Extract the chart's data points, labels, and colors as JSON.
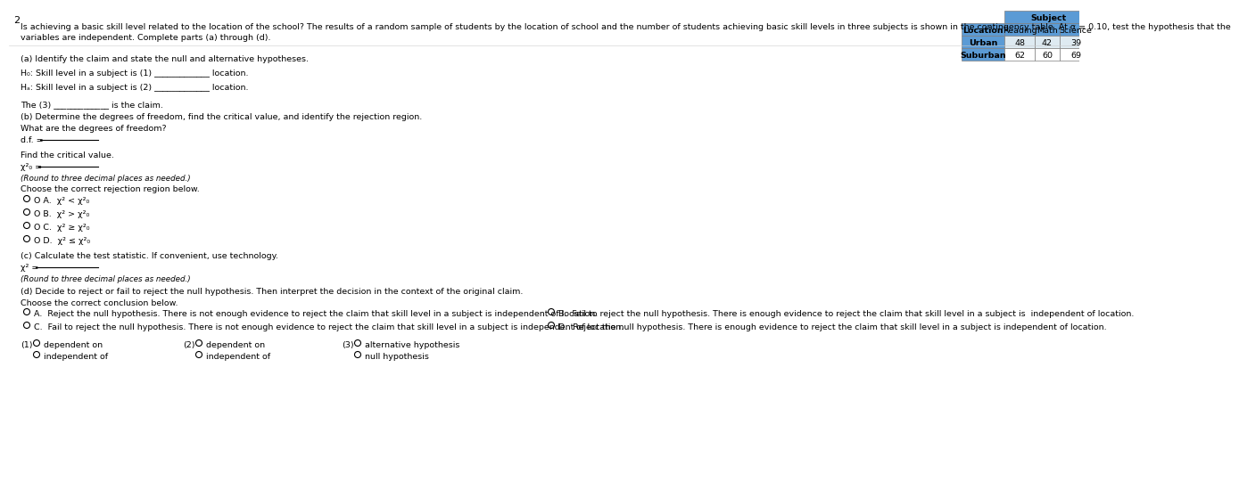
{
  "page_number": "2",
  "title_line1": "Is achieving a basic skill level related to the location of the school? The results of a random sample of students by the location of school and the number of students achieving basic skill levels in three subjects is shown in the contingency table. At α = 0.10, test the hypothesis that the",
  "title_line2": "variables are independent. Complete parts (a) through (d).",
  "table": {
    "header_top": "Subject",
    "headers": [
      "Location",
      "Reading",
      "Math",
      "Science"
    ],
    "rows": [
      [
        "Urban",
        "48",
        "42",
        "39"
      ],
      [
        "Suburban",
        "62",
        "60",
        "69"
      ]
    ],
    "header_bg": "#5B9BD5",
    "data_bg": "#DEEAF1",
    "data_bg2": "#FFFFFF",
    "border_color": "#7F7F7F"
  },
  "part_a_title": "(a) Identify the claim and state the null and alternative hypotheses.",
  "h0_text": "H₀: Skill level in a subject is (1) _____________ location.",
  "ha_text": "Hₐ: Skill level in a subject is (2) _____________ location.",
  "the_claim": "The (3) _____________ is the claim.",
  "part_b_title": "(b) Determine the degrees of freedom, find the critical value, and identify the rejection region.",
  "dof_question": "What are the degrees of freedom?",
  "critical_val_prompt": "Find the critical value.",
  "round_note": "(Round to three decimal places as needed.)",
  "rejection_prompt": "Choose the correct rejection region below.",
  "rejection_options": [
    [
      "A.",
      "χ² < χ²₀"
    ],
    [
      "B.",
      "χ² > χ²₀"
    ],
    [
      "C.",
      "χ² ≥ χ²₀"
    ],
    [
      "D.",
      "χ² ≤ χ²₀"
    ]
  ],
  "part_c_title": "(c) Calculate the test statistic. If convenient, use technology.",
  "part_d_title": "(d) Decide to reject or fail to reject the null hypothesis. Then interpret the decision in the context of the original claim.",
  "conclusion_prompt": "Choose the correct conclusion below.",
  "conclusion_left": [
    "O A.  Reject the null hypothesis. There is not enough evidence to reject the claim that skill level in a subject is independent of location.",
    "O C.  Fail to reject the null hypothesis. There is not enough evidence to reject the claim that skill level in a subject is independent of location."
  ],
  "conclusion_right": [
    "O B.  Fail to reject the null hypothesis. There is enough evidence to reject the claim that skill level in a subject is  independent of location.",
    "O D.  Reject the null hypothesis. There is enough evidence to reject the claim that skill level in a subject is independent of location."
  ],
  "footnote_groups": [
    {
      "number": "(1)",
      "options": [
        "dependent on",
        "independent of"
      ]
    },
    {
      "number": "(2)",
      "options": [
        "dependent on",
        "independent of"
      ]
    },
    {
      "number": "(3)",
      "options": [
        "alternative hypothesis",
        "null hypothesis"
      ]
    }
  ],
  "bg_color": "#FFFFFF",
  "text_color": "#000000",
  "fs": 6.8
}
